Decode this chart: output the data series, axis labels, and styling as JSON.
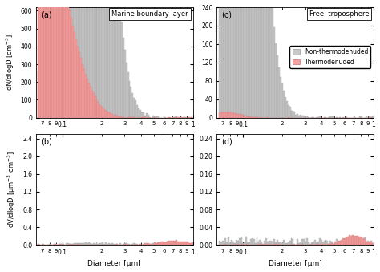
{
  "title_a": "Marine boundary layer",
  "title_c": "Free  troposphere",
  "label_a": "(a)",
  "label_b": "(b)",
  "label_c": "(c)",
  "label_d": "(d)",
  "ylabel_top": "dN/dlogD [cm$^{-3}$]",
  "ylabel_bot": "dV/dlogD [μm$^{-3}$ cm$^{-3}$]",
  "xlabel": "Diameter [μm]",
  "legend_non": "Non-thermodenuded",
  "legend_thermo": "Thermodenuded",
  "color_non": "#c8c8c8",
  "color_thermo": "#f4a0a0",
  "color_edge_non": "#999999",
  "color_edge_thermo": "#d07070",
  "xlim": [
    0.063,
    1.0
  ],
  "ylim_a": [
    0,
    620
  ],
  "ylim_b": [
    0,
    2.5
  ],
  "ylim_c": [
    0,
    240
  ],
  "ylim_d": [
    0,
    0.25
  ],
  "yticks_a": [
    0,
    100,
    200,
    300,
    400,
    500,
    600
  ],
  "yticks_b": [
    0.0,
    0.4,
    0.8,
    1.2,
    1.6,
    2.0,
    2.4
  ],
  "yticks_c": [
    0,
    40,
    80,
    120,
    160,
    200,
    240
  ],
  "yticks_d": [
    0.0,
    0.04,
    0.08,
    0.12,
    0.16,
    0.2,
    0.24
  ]
}
